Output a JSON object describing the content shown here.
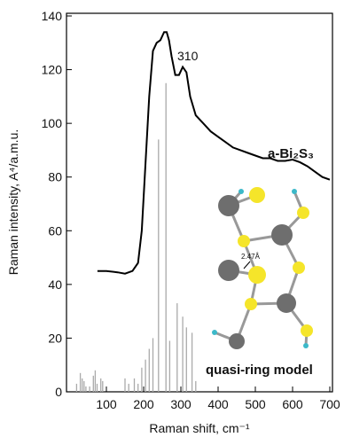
{
  "chart_data": {
    "type": "line",
    "xlabel": "Raman shift, cm⁻¹",
    "ylabel": "Raman intensity, A⁴/a.m.u.",
    "annotations": [
      "310",
      "a-Bi₂S₃",
      "quasi-ring model",
      "2.47Å"
    ],
    "xlim": [
      0,
      700
    ],
    "xticks": [
      100,
      200,
      300,
      400,
      500,
      600,
      700
    ],
    "ylim": [
      0,
      140
    ],
    "yticks": [
      0,
      20,
      40,
      60,
      80,
      100,
      120,
      140
    ],
    "series": [
      {
        "type": "line",
        "color": "#000000",
        "x": [
          76,
          100,
          130,
          150,
          170,
          185,
          195,
          205,
          215,
          225,
          235,
          245,
          255,
          262,
          268,
          275,
          285,
          295,
          305,
          315,
          325,
          340,
          360,
          380,
          400,
          420,
          440,
          460,
          480,
          500,
          520,
          540,
          560,
          580,
          600,
          620,
          640,
          660,
          680,
          700
        ],
        "values": [
          45,
          45,
          44.5,
          44,
          45,
          48,
          60,
          85,
          110,
          127,
          130,
          131,
          134,
          134,
          131,
          125,
          118,
          118,
          121,
          119,
          110,
          103,
          100,
          97,
          95,
          93,
          91,
          90,
          89,
          88,
          87,
          87,
          86,
          86,
          86.5,
          85.5,
          84,
          82,
          80,
          79
        ]
      },
      {
        "type": "stem",
        "color": "#aaaaaa",
        "x": [
          20,
          30,
          35,
          40,
          45,
          55,
          65,
          70,
          75,
          85,
          90,
          150,
          160,
          175,
          185,
          195,
          205,
          215,
          225,
          240,
          260,
          270,
          290,
          305,
          315,
          330,
          340
        ],
        "values": [
          3,
          7,
          5,
          4,
          2,
          2,
          6,
          8,
          3,
          5,
          4,
          5,
          3,
          5,
          3,
          9,
          12,
          16,
          20,
          94,
          115,
          19,
          33,
          28,
          24,
          22,
          4
        ]
      }
    ]
  }
}
